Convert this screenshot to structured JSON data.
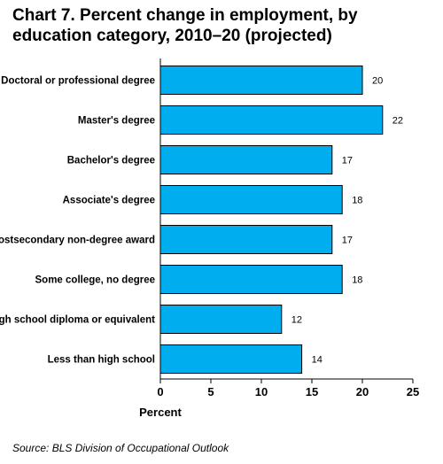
{
  "chart_data": {
    "type": "bar",
    "orientation": "horizontal",
    "title": "Chart 7. Percent change in employment, by education category, 2010–20 (projected)",
    "xlabel": "Percent",
    "ylabel": "",
    "categories": [
      "Doctoral or professional degree",
      "Master's degree",
      "Bachelor's degree",
      "Associate's degree",
      "Postsecondary non-degree award",
      "Some college, no degree",
      "High school diploma or equivalent",
      "Less than high school"
    ],
    "values": [
      20,
      22,
      17,
      18,
      17,
      18,
      12,
      14
    ],
    "xlim": [
      0,
      25
    ],
    "xticks": [
      0,
      5,
      10,
      15,
      20,
      25
    ],
    "grid": false,
    "legend": "none",
    "bar_color": "#00AEEF",
    "source": "Source: BLS Division of Occupational Outlook"
  }
}
